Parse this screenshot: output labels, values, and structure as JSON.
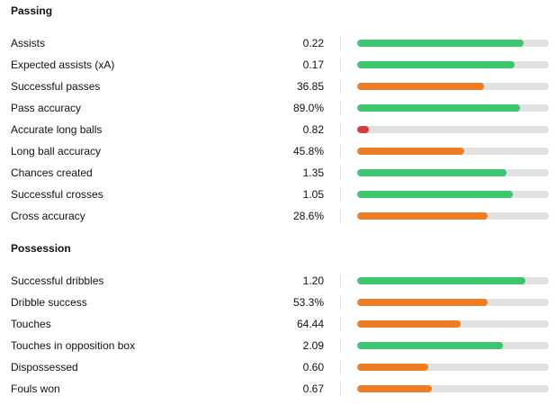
{
  "colors": {
    "good": "#3cc46f",
    "average": "#ef7d24",
    "poor": "#dc3a35",
    "track": "#e0e0e0"
  },
  "sections": [
    {
      "title": "Passing",
      "rows": [
        {
          "label": "Assists",
          "value": "0.22",
          "percentile": 0.87,
          "level": "good"
        },
        {
          "label": "Expected assists (xA)",
          "value": "0.17",
          "percentile": 0.82,
          "level": "good"
        },
        {
          "label": "Successful passes",
          "value": "36.85",
          "percentile": 0.66,
          "level": "average"
        },
        {
          "label": "Pass accuracy",
          "value": "89.0%",
          "percentile": 0.85,
          "level": "good"
        },
        {
          "label": "Accurate long balls",
          "value": "0.82",
          "percentile": 0.06,
          "level": "poor"
        },
        {
          "label": "Long ball accuracy",
          "value": "45.8%",
          "percentile": 0.56,
          "level": "average"
        },
        {
          "label": "Chances created",
          "value": "1.35",
          "percentile": 0.78,
          "level": "good"
        },
        {
          "label": "Successful crosses",
          "value": "1.05",
          "percentile": 0.81,
          "level": "good"
        },
        {
          "label": "Cross accuracy",
          "value": "28.6%",
          "percentile": 0.68,
          "level": "average"
        }
      ]
    },
    {
      "title": "Possession",
      "rows": [
        {
          "label": "Successful dribbles",
          "value": "1.20",
          "percentile": 0.88,
          "level": "good"
        },
        {
          "label": "Dribble success",
          "value": "53.3%",
          "percentile": 0.68,
          "level": "average"
        },
        {
          "label": "Touches",
          "value": "64.44",
          "percentile": 0.54,
          "level": "average"
        },
        {
          "label": "Touches in opposition box",
          "value": "2.09",
          "percentile": 0.76,
          "level": "good"
        },
        {
          "label": "Dispossessed",
          "value": "0.60",
          "percentile": 0.37,
          "level": "average"
        },
        {
          "label": "Fouls won",
          "value": "0.67",
          "percentile": 0.39,
          "level": "average"
        }
      ]
    }
  ]
}
